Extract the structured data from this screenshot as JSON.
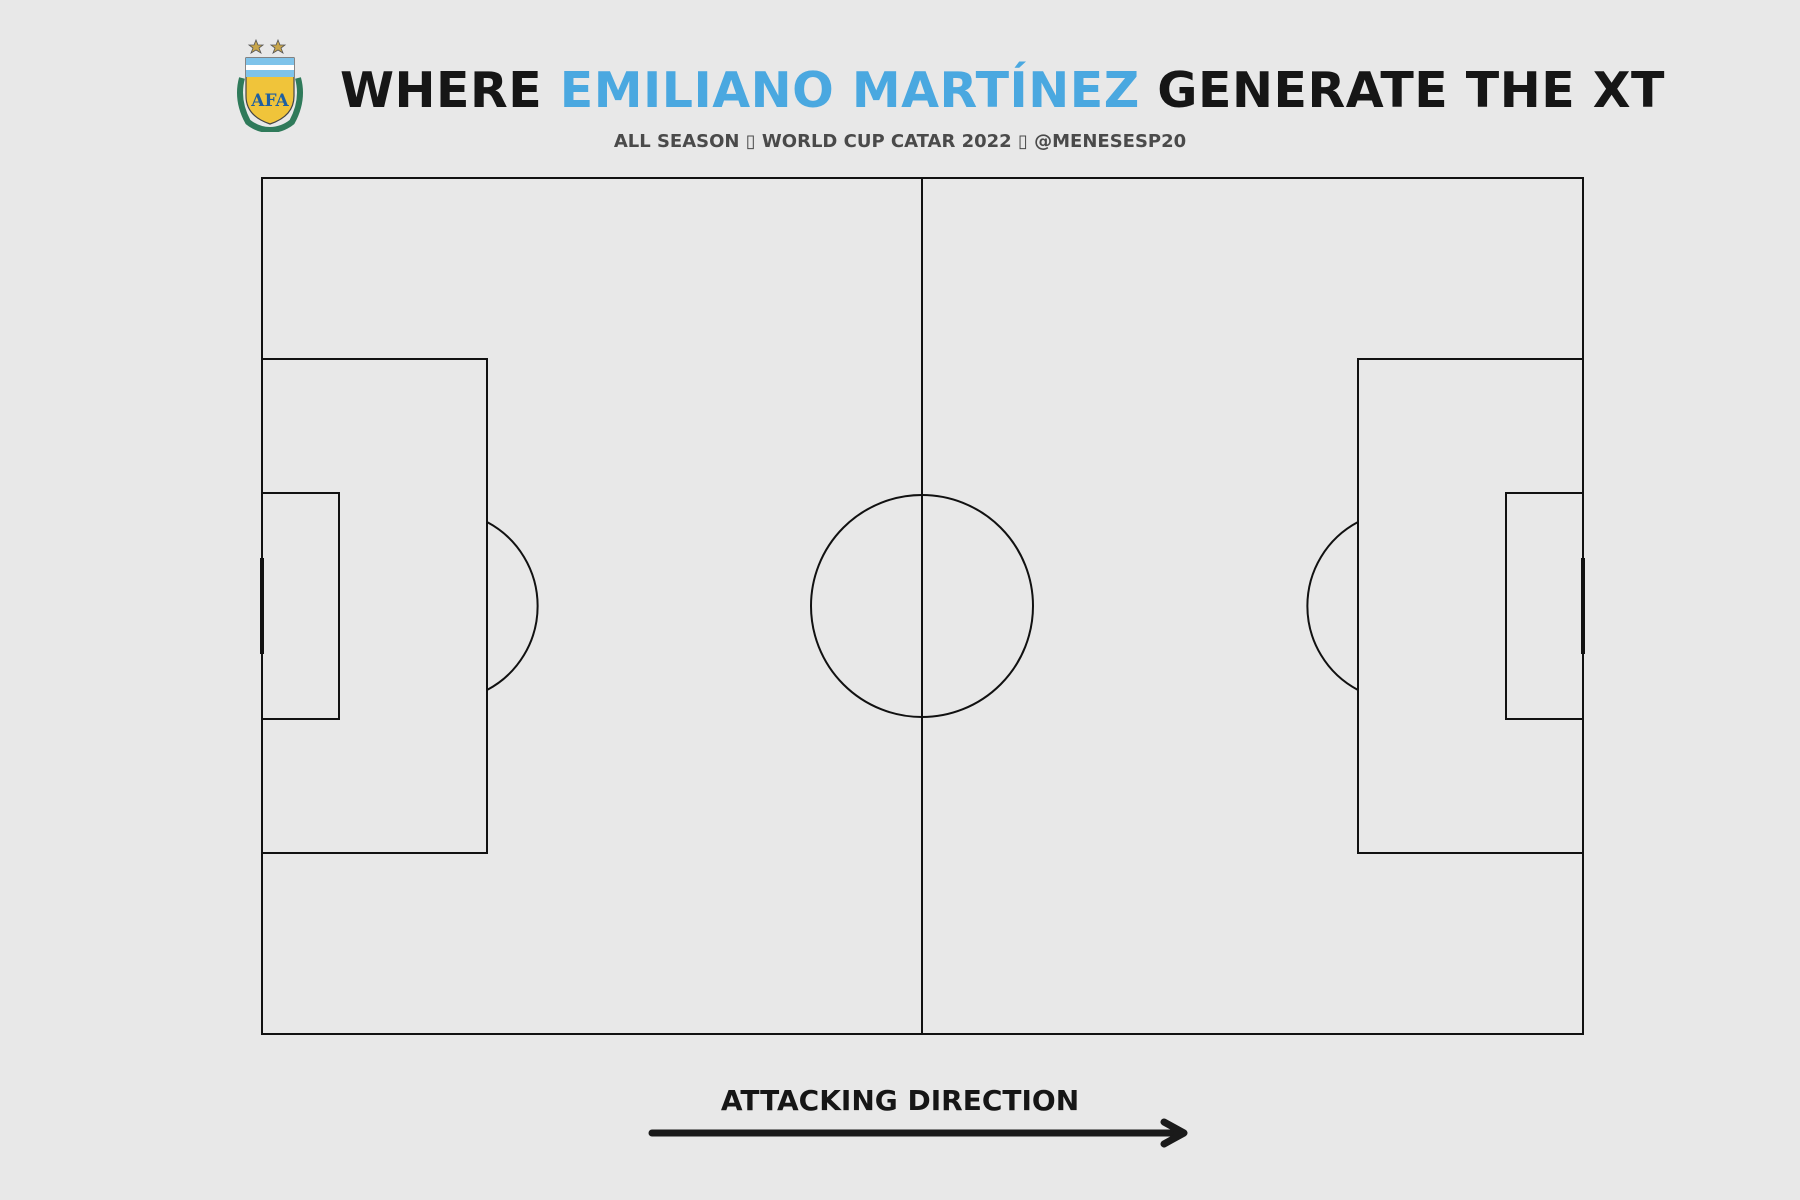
{
  "header": {
    "title_prefix": "WHERE ",
    "player_name": "EMILIANO MARTÍNEZ",
    "title_suffix": " GENERATE THE XT",
    "subtitle": "ALL SEASON ▯ WORLD CUP CATAR 2022 ▯ @MENESESP20",
    "crest_text": "AFA"
  },
  "footer": {
    "attacking_direction": "ATTACKING DIRECTION"
  },
  "colors": {
    "background": "#e8e8e8",
    "title_text": "#161616",
    "player_highlight": "#4aa8e0",
    "subtitle_text": "#4a4a4a",
    "pitch_lines": "#111111"
  },
  "icons": {
    "crest": "afa-crest-icon",
    "arrow": "arrow-right-icon"
  }
}
